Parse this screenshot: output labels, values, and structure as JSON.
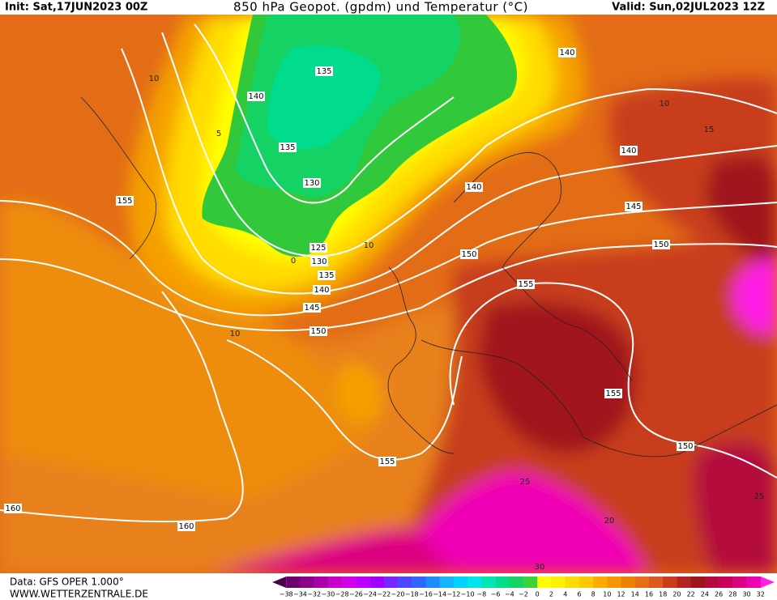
{
  "header": {
    "init": "Init: Sat,17JUN2023 00Z",
    "title": "850 hPa Geopot. (gpdm) und Temperatur (°C)",
    "valid": "Valid: Sun,02JUL2023 12Z"
  },
  "map": {
    "geopotential_labels": [
      "135",
      "140",
      "135",
      "130",
      "155",
      "125",
      "130",
      "135",
      "140",
      "145",
      "150",
      "140",
      "140",
      "140",
      "145",
      "150",
      "150",
      "155",
      "155",
      "150",
      "155",
      "160",
      "160"
    ],
    "isotherm_labels": [
      "10",
      "10",
      "10",
      "15",
      "5",
      "0",
      "10",
      "25",
      "20",
      "30",
      "25"
    ]
  },
  "footer": {
    "data": "Data: GFS OPER 1.000°",
    "site": "WWW.WETTERZENTRALE.DE"
  },
  "colorbar": {
    "labels": [
      "−38",
      "−34",
      "−32",
      "−30",
      "−28",
      "−26",
      "−24",
      "−22",
      "−20",
      "−18",
      "−16",
      "−14",
      "−12",
      "−10",
      "−8",
      "−6",
      "−4",
      "−2",
      "0",
      "2",
      "4",
      "6",
      "8",
      "10",
      "12",
      "14",
      "16",
      "18",
      "20",
      "22",
      "24",
      "26",
      "28",
      "30",
      "32"
    ],
    "colors": [
      "#4b004b",
      "#6e006e",
      "#8c008c",
      "#aa00aa",
      "#c800c8",
      "#d200e6",
      "#be00ff",
      "#a000ff",
      "#7828ff",
      "#5046ff",
      "#3264ff",
      "#1e8cff",
      "#14b4ff",
      "#00d2ff",
      "#00e6e6",
      "#00e6b4",
      "#00dc8c",
      "#14d264",
      "#3cd23c",
      "#ffff00",
      "#fff000",
      "#ffdc00",
      "#ffc800",
      "#ffaa00",
      "#f59600",
      "#eb8200",
      "#e66e14",
      "#dc5a1e",
      "#c83c1e",
      "#b4231e",
      "#a0141e",
      "#b40a3c",
      "#c8005a",
      "#dc0082",
      "#f000b4",
      "#ff1ee6"
    ]
  }
}
